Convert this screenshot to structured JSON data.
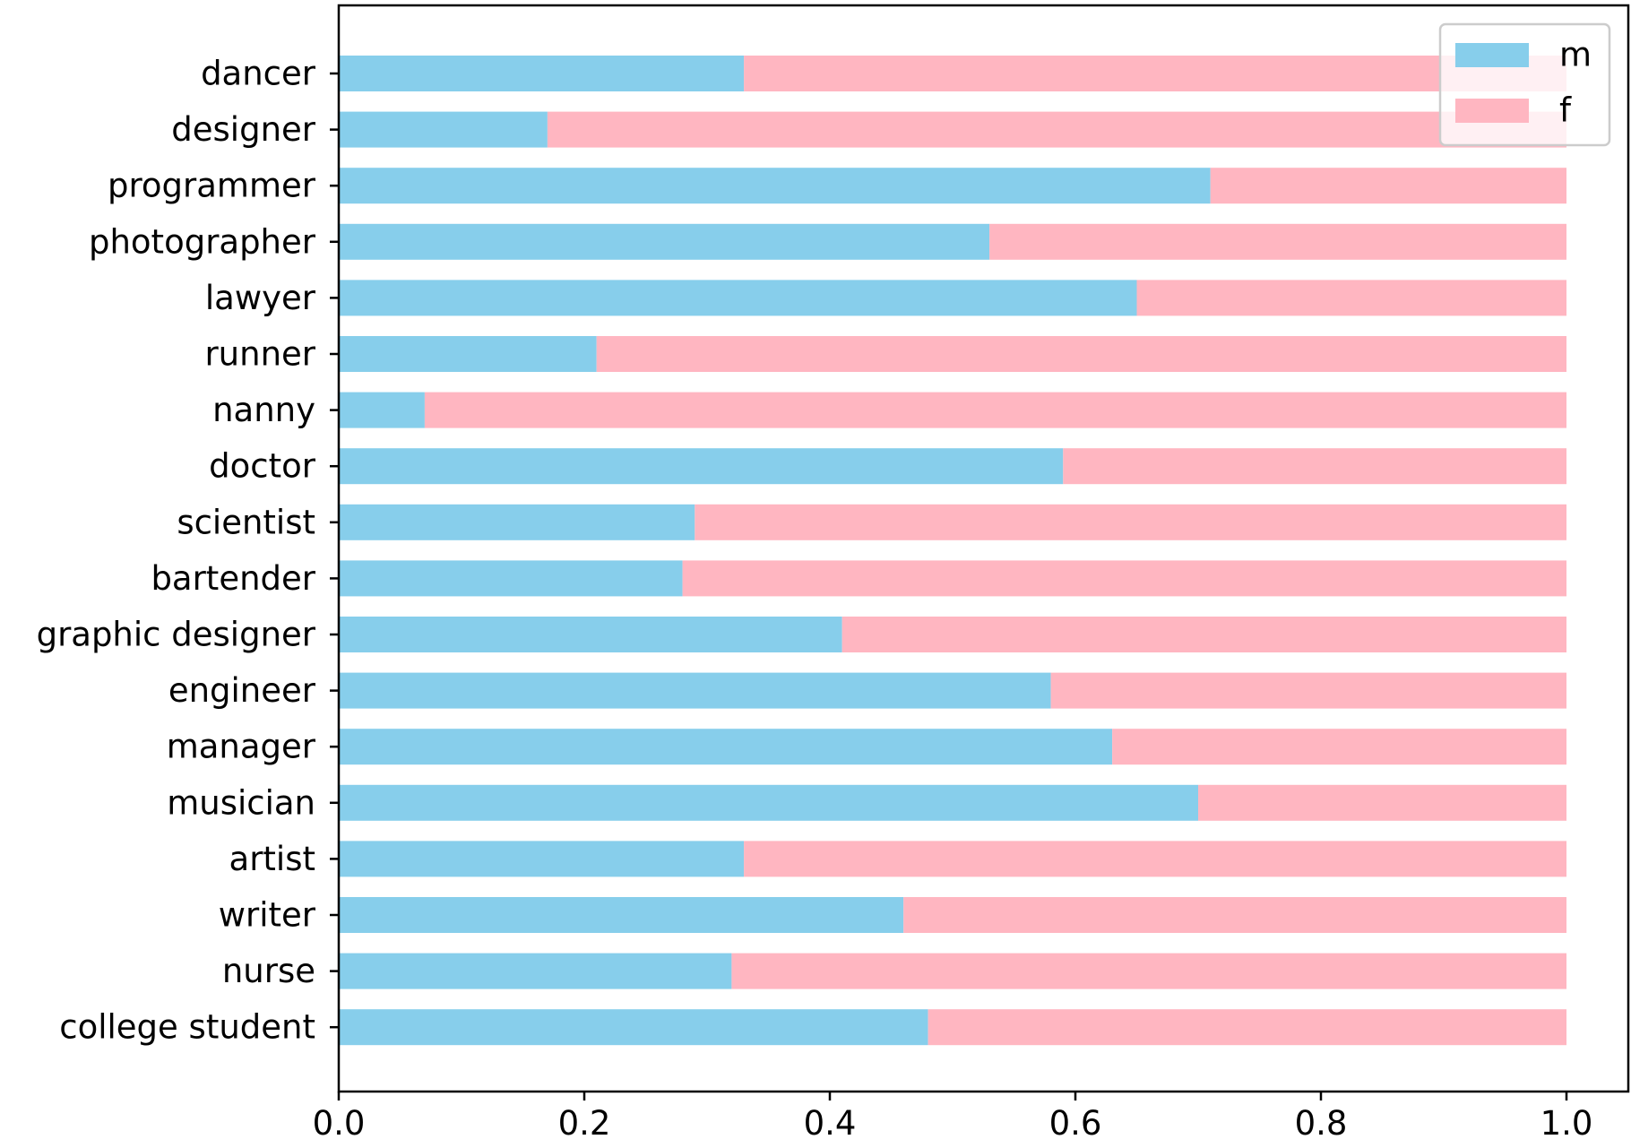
{
  "chart_data": {
    "type": "bar",
    "orientation": "horizontal",
    "stacked": true,
    "categories": [
      "dancer",
      "designer",
      "programmer",
      "photographer",
      "lawyer",
      "runner",
      "nanny",
      "doctor",
      "scientist",
      "bartender",
      "graphic designer",
      "engineer",
      "manager",
      "musician",
      "artist",
      "writer",
      "nurse",
      "college student"
    ],
    "series": [
      {
        "name": "m",
        "color": "#87ceeb",
        "values": [
          0.33,
          0.17,
          0.71,
          0.53,
          0.65,
          0.21,
          0.07,
          0.59,
          0.29,
          0.28,
          0.41,
          0.58,
          0.63,
          0.7,
          0.33,
          0.46,
          0.32,
          0.48
        ]
      },
      {
        "name": "f",
        "color": "#ffb6c1",
        "values": [
          0.67,
          0.83,
          0.29,
          0.47,
          0.35,
          0.79,
          0.93,
          0.41,
          0.71,
          0.72,
          0.59,
          0.42,
          0.37,
          0.3,
          0.67,
          0.54,
          0.68,
          0.52
        ]
      }
    ],
    "title": "",
    "xlabel": "",
    "ylabel": "",
    "xlim": [
      0.0,
      1.05
    ],
    "xticks": [
      0.0,
      0.2,
      0.4,
      0.6,
      0.8,
      1.0
    ],
    "xtick_labels": [
      "0.0",
      "0.2",
      "0.4",
      "0.6",
      "0.8",
      "1.0"
    ],
    "grid": false,
    "legend_position": "top-right"
  }
}
